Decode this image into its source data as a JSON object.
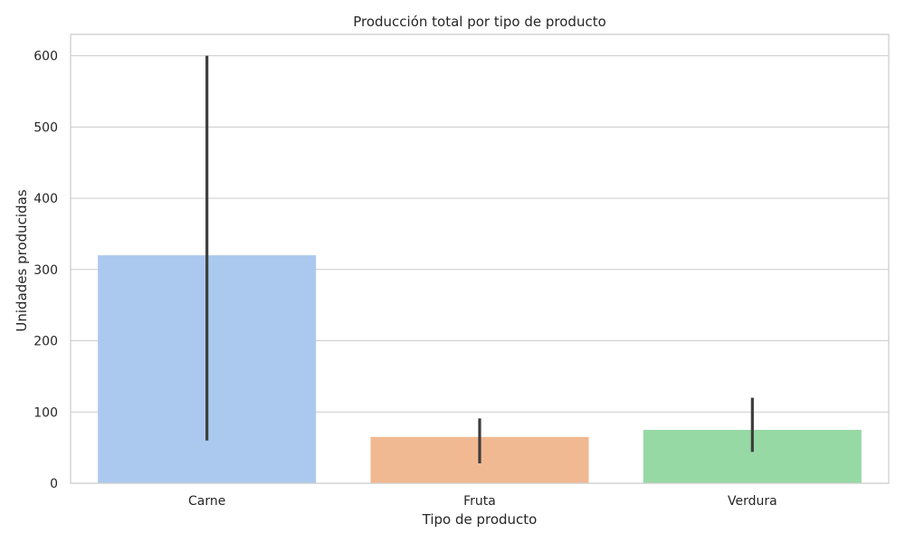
{
  "chart_data": {
    "type": "bar",
    "title": "Producción total por tipo de producto",
    "xlabel": "Tipo de producto",
    "ylabel": "Unidades producidas",
    "categories": [
      "Carne",
      "Fruta",
      "Verdura"
    ],
    "values": [
      320,
      65,
      75
    ],
    "error_low": [
      60,
      28,
      44
    ],
    "error_high": [
      600,
      91,
      120
    ],
    "colors": [
      "#abc9ef",
      "#f1b992",
      "#97d9a5"
    ],
    "error_color": "#3d3d3d",
    "ylim": [
      0,
      630
    ],
    "yticks": [
      0,
      100,
      200,
      300,
      400,
      500,
      600
    ],
    "grid": "horizontal",
    "legend": "none"
  }
}
